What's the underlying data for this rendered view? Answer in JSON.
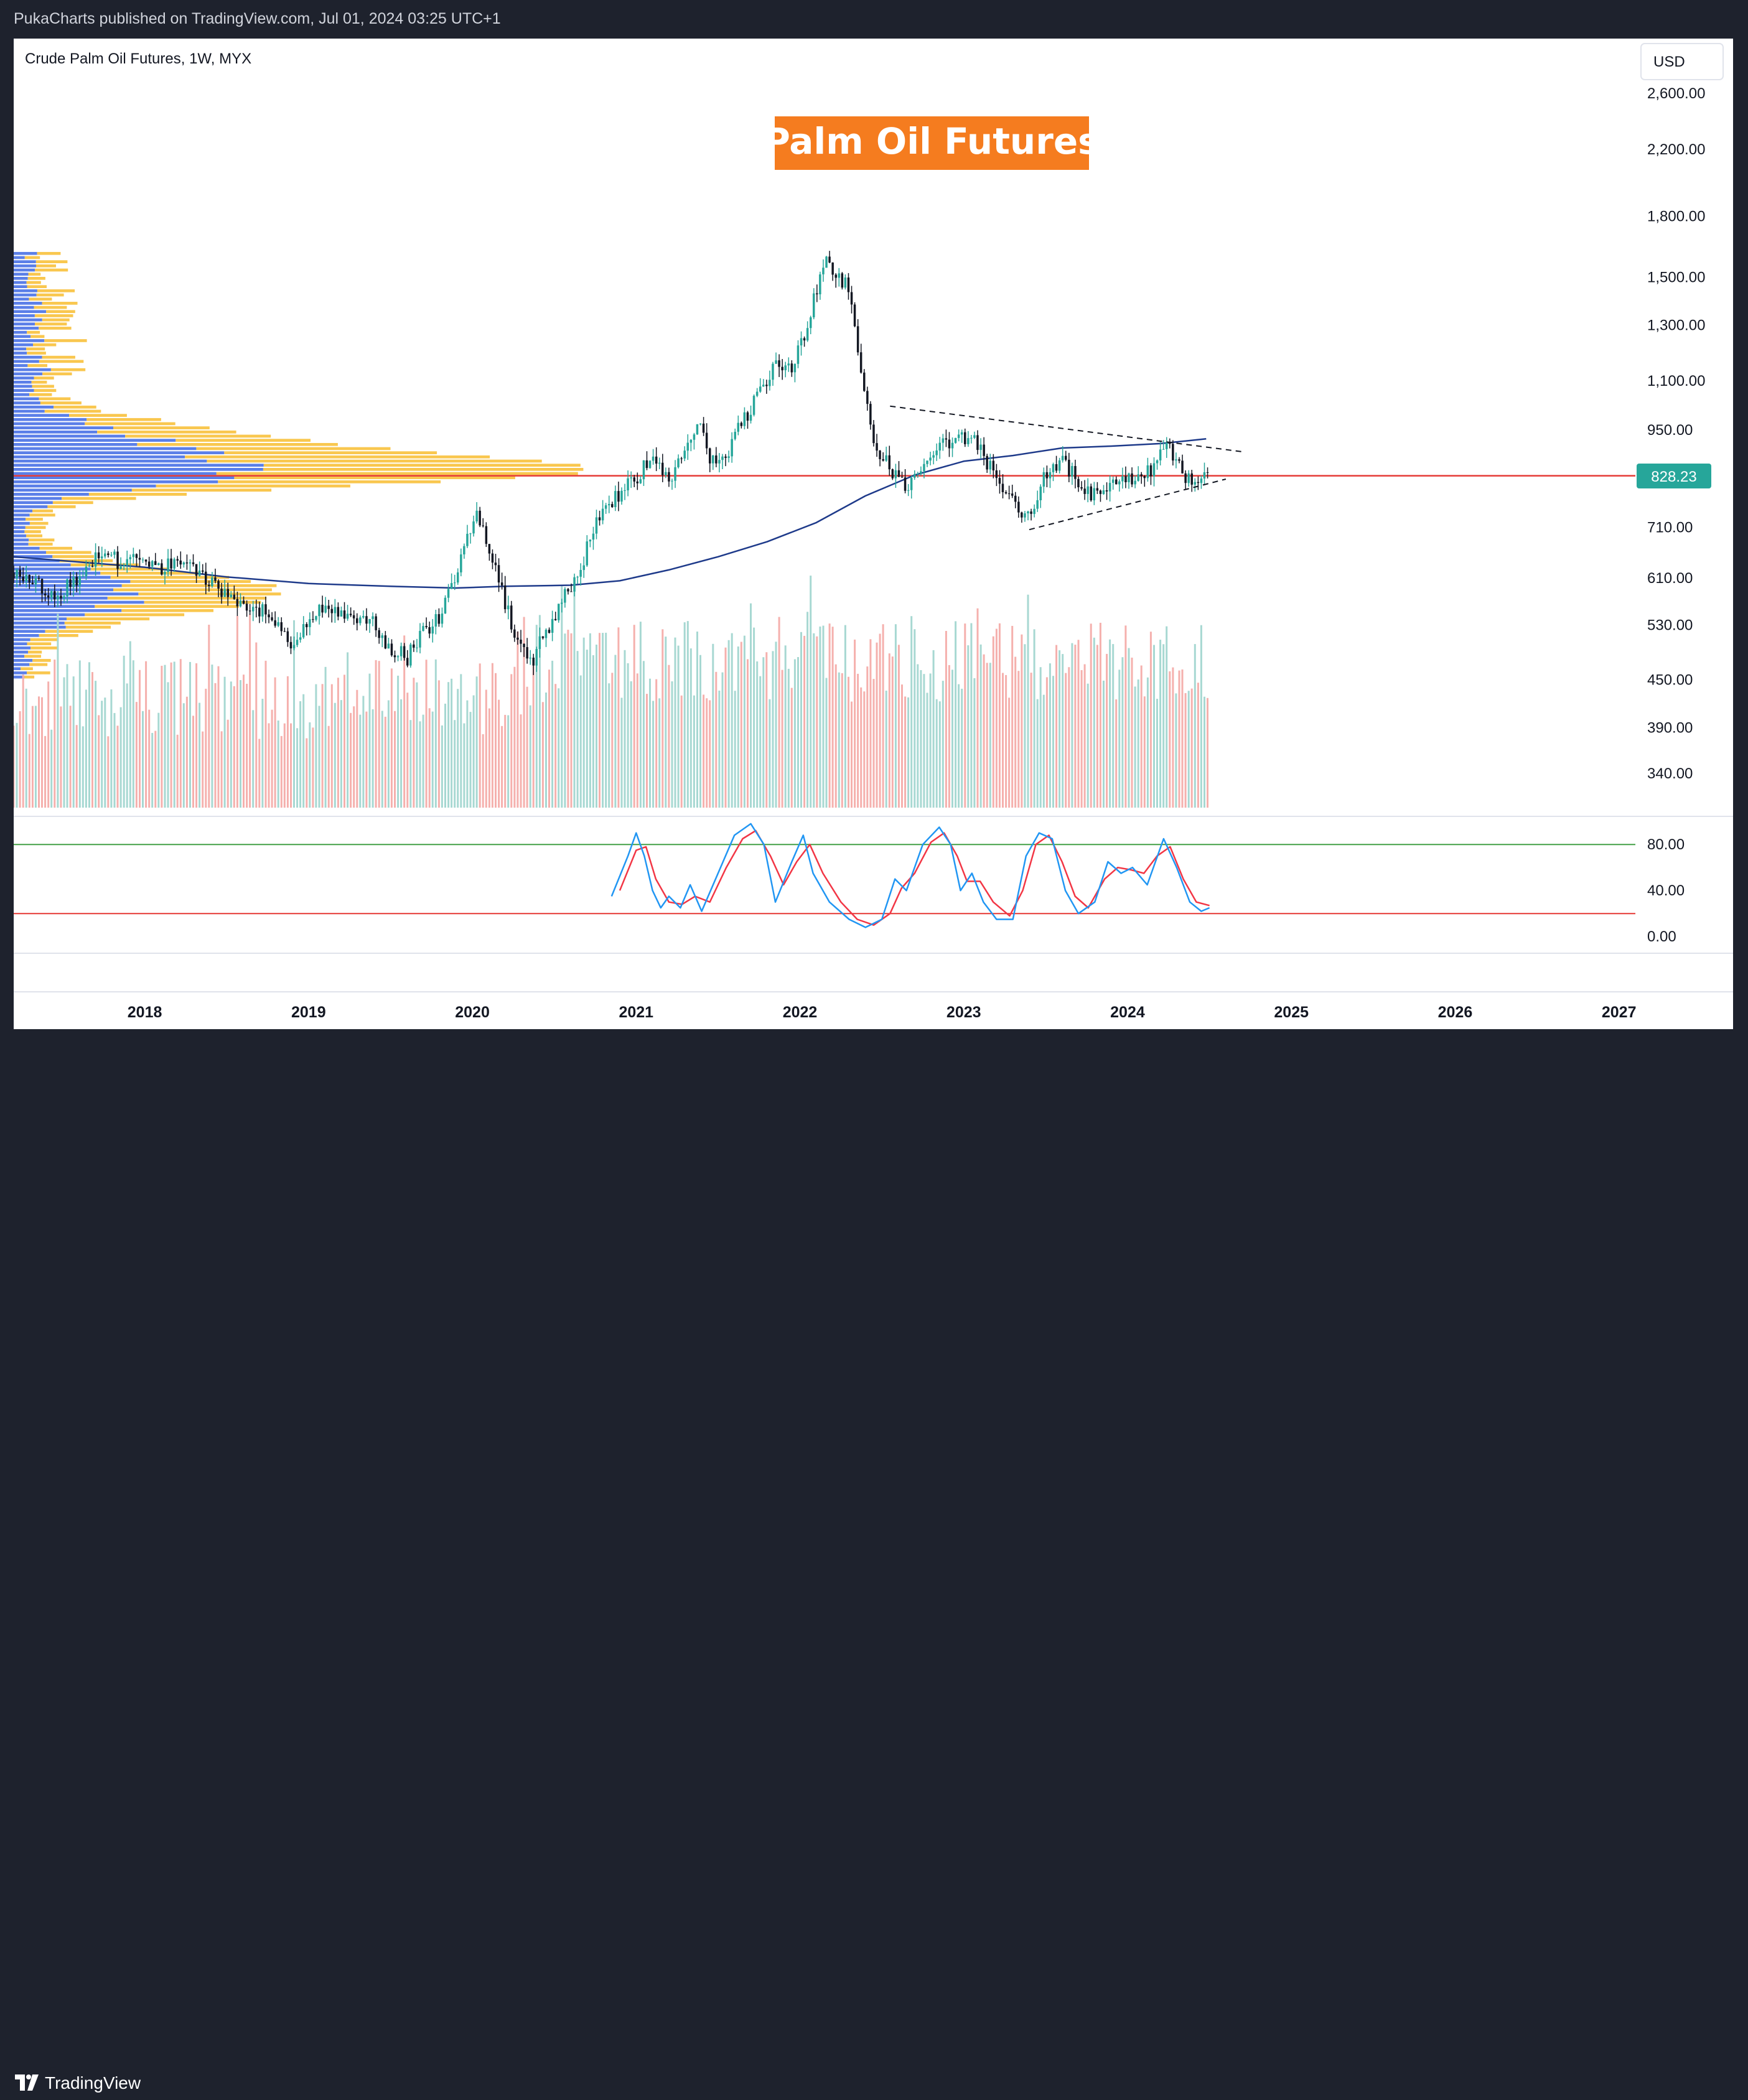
{
  "header": {
    "published": "PukaCharts published on TradingView.com, Jul 01, 2024 03:25 UTC+1"
  },
  "footer": {
    "brand": "TradingView",
    "logo_icon": "tradingview-logo-icon"
  },
  "colors": {
    "up": "#26a69a",
    "down": "#ef5350",
    "volume_up": "#a7d8d2",
    "volume_down": "#f5b0ad",
    "ma": "#1e3a8a",
    "profile_blue": "#5b7fe8",
    "profile_yellow": "#f9c74f",
    "banner_bg": "#f57c1f",
    "stoch_k": "#2196f3",
    "stoch_d": "#f23645",
    "level_line": "#e53935",
    "band_upper": "#43a047",
    "band_lower": "#e53935"
  },
  "chart_data": {
    "type": "candlestick",
    "symbol": "Crude Palm Oil Futures, 1W, MYX",
    "currency_button": "USD",
    "banner": "Palm Oil Futures",
    "last_price": "828.23",
    "price_axis": {
      "scale": "log",
      "ticks": [
        "2,600.00",
        "2,200.00",
        "1,800.00",
        "1,500.00",
        "1,300.00",
        "1,100.00",
        "950.00",
        "710.00",
        "610.00",
        "530.00",
        "450.00",
        "390.00",
        "340.00"
      ]
    },
    "time_axis": {
      "ticks": [
        "2018",
        "2019",
        "2020",
        "2021",
        "2022",
        "2023",
        "2024",
        "2025",
        "2026",
        "2027"
      ],
      "range": [
        2017.2,
        2027.1
      ]
    },
    "price_path": [
      [
        2017.25,
        620
      ],
      [
        2017.45,
        580
      ],
      [
        2017.6,
        610
      ],
      [
        2017.72,
        660
      ],
      [
        2017.85,
        640
      ],
      [
        2018.0,
        650
      ],
      [
        2018.1,
        630
      ],
      [
        2018.25,
        650
      ],
      [
        2018.35,
        610
      ],
      [
        2018.45,
        590
      ],
      [
        2018.55,
        560
      ],
      [
        2018.65,
        560
      ],
      [
        2018.8,
        540
      ],
      [
        2018.88,
        500
      ],
      [
        2018.95,
        520
      ],
      [
        2019.05,
        550
      ],
      [
        2019.12,
        570
      ],
      [
        2019.2,
        545
      ],
      [
        2019.3,
        530
      ],
      [
        2019.4,
        535
      ],
      [
        2019.48,
        500
      ],
      [
        2019.6,
        480
      ],
      [
        2019.7,
        520
      ],
      [
        2019.8,
        540
      ],
      [
        2019.9,
        620
      ],
      [
        2019.98,
        700
      ],
      [
        2020.03,
        740
      ],
      [
        2020.1,
        660
      ],
      [
        2020.18,
        590
      ],
      [
        2020.25,
        520
      ],
      [
        2020.35,
        470
      ],
      [
        2020.45,
        520
      ],
      [
        2020.55,
        570
      ],
      [
        2020.65,
        620
      ],
      [
        2020.75,
        720
      ],
      [
        2020.85,
        760
      ],
      [
        2020.92,
        800
      ],
      [
        2021.0,
        820
      ],
      [
        2021.1,
        880
      ],
      [
        2021.2,
        820
      ],
      [
        2021.3,
        900
      ],
      [
        2021.38,
        980
      ],
      [
        2021.46,
        860
      ],
      [
        2021.55,
        880
      ],
      [
        2021.65,
        980
      ],
      [
        2021.75,
        1050
      ],
      [
        2021.85,
        1150
      ],
      [
        2021.95,
        1150
      ],
      [
        2022.02,
        1250
      ],
      [
        2022.1,
        1450
      ],
      [
        2022.16,
        1600
      ],
      [
        2022.22,
        1500
      ],
      [
        2022.3,
        1450
      ],
      [
        2022.38,
        1100
      ],
      [
        2022.45,
        900
      ],
      [
        2022.55,
        850
      ],
      [
        2022.65,
        800
      ],
      [
        2022.75,
        850
      ],
      [
        2022.85,
        900
      ],
      [
        2022.95,
        920
      ],
      [
        2023.05,
        940
      ],
      [
        2023.12,
        880
      ],
      [
        2023.22,
        800
      ],
      [
        2023.3,
        760
      ],
      [
        2023.4,
        740
      ],
      [
        2023.5,
        830
      ],
      [
        2023.6,
        860
      ],
      [
        2023.7,
        820
      ],
      [
        2023.78,
        780
      ],
      [
        2023.85,
        800
      ],
      [
        2023.95,
        830
      ],
      [
        2024.05,
        820
      ],
      [
        2024.15,
        850
      ],
      [
        2024.22,
        920
      ],
      [
        2024.28,
        880
      ],
      [
        2024.35,
        820
      ],
      [
        2024.45,
        830
      ],
      [
        2024.5,
        828.23
      ]
    ],
    "moving_average_path": [
      [
        2017.2,
        650
      ],
      [
        2017.6,
        640
      ],
      [
        2018.0,
        630
      ],
      [
        2018.5,
        612
      ],
      [
        2019.0,
        600
      ],
      [
        2019.5,
        595
      ],
      [
        2019.9,
        592
      ],
      [
        2020.2,
        595
      ],
      [
        2020.6,
        597
      ],
      [
        2020.9,
        605
      ],
      [
        2021.2,
        625
      ],
      [
        2021.5,
        650
      ],
      [
        2021.8,
        680
      ],
      [
        2022.1,
        720
      ],
      [
        2022.4,
        780
      ],
      [
        2022.7,
        830
      ],
      [
        2023.0,
        865
      ],
      [
        2023.3,
        880
      ],
      [
        2023.6,
        900
      ],
      [
        2023.9,
        905
      ],
      [
        2024.2,
        912
      ],
      [
        2024.48,
        925
      ]
    ],
    "triangle_upper": [
      [
        2022.55,
        1020
      ],
      [
        2024.7,
        890
      ]
    ],
    "triangle_lower": [
      [
        2023.4,
        705
      ],
      [
        2024.6,
        820
      ]
    ],
    "horizontal_level": 828.23,
    "stochastic": {
      "range": [
        -8,
        112
      ],
      "ticks": [
        "80.00",
        "40.00",
        "0.00"
      ],
      "upper_band": 80,
      "lower_band": 20,
      "k": [
        [
          2020.85,
          35
        ],
        [
          2020.95,
          70
        ],
        [
          2021.0,
          90
        ],
        [
          2021.05,
          70
        ],
        [
          2021.1,
          40
        ],
        [
          2021.15,
          25
        ],
        [
          2021.2,
          35
        ],
        [
          2021.27,
          25
        ],
        [
          2021.33,
          45
        ],
        [
          2021.4,
          22
        ],
        [
          2021.5,
          55
        ],
        [
          2021.6,
          88
        ],
        [
          2021.7,
          98
        ],
        [
          2021.78,
          80
        ],
        [
          2021.85,
          30
        ],
        [
          2021.95,
          65
        ],
        [
          2022.02,
          88
        ],
        [
          2022.08,
          55
        ],
        [
          2022.18,
          30
        ],
        [
          2022.3,
          15
        ],
        [
          2022.4,
          8
        ],
        [
          2022.5,
          15
        ],
        [
          2022.58,
          50
        ],
        [
          2022.65,
          40
        ],
        [
          2022.75,
          80
        ],
        [
          2022.85,
          95
        ],
        [
          2022.92,
          80
        ],
        [
          2022.98,
          40
        ],
        [
          2023.05,
          55
        ],
        [
          2023.12,
          30
        ],
        [
          2023.2,
          15
        ],
        [
          2023.3,
          15
        ],
        [
          2023.38,
          70
        ],
        [
          2023.46,
          90
        ],
        [
          2023.54,
          85
        ],
        [
          2023.62,
          40
        ],
        [
          2023.7,
          20
        ],
        [
          2023.8,
          30
        ],
        [
          2023.88,
          65
        ],
        [
          2023.96,
          55
        ],
        [
          2024.03,
          60
        ],
        [
          2024.12,
          45
        ],
        [
          2024.22,
          85
        ],
        [
          2024.3,
          60
        ],
        [
          2024.38,
          30
        ],
        [
          2024.45,
          22
        ],
        [
          2024.5,
          25
        ]
      ],
      "d": [
        [
          2020.9,
          40
        ],
        [
          2021.0,
          75
        ],
        [
          2021.06,
          78
        ],
        [
          2021.12,
          50
        ],
        [
          2021.2,
          30
        ],
        [
          2021.28,
          28
        ],
        [
          2021.36,
          35
        ],
        [
          2021.45,
          30
        ],
        [
          2021.55,
          60
        ],
        [
          2021.65,
          85
        ],
        [
          2021.73,
          92
        ],
        [
          2021.82,
          70
        ],
        [
          2021.9,
          45
        ],
        [
          2021.98,
          65
        ],
        [
          2022.06,
          80
        ],
        [
          2022.14,
          55
        ],
        [
          2022.25,
          30
        ],
        [
          2022.35,
          15
        ],
        [
          2022.45,
          10
        ],
        [
          2022.55,
          20
        ],
        [
          2022.62,
          42
        ],
        [
          2022.7,
          55
        ],
        [
          2022.8,
          82
        ],
        [
          2022.88,
          90
        ],
        [
          2022.96,
          70
        ],
        [
          2023.02,
          48
        ],
        [
          2023.1,
          48
        ],
        [
          2023.18,
          30
        ],
        [
          2023.28,
          18
        ],
        [
          2023.36,
          40
        ],
        [
          2023.44,
          80
        ],
        [
          2023.52,
          88
        ],
        [
          2023.6,
          65
        ],
        [
          2023.68,
          35
        ],
        [
          2023.76,
          25
        ],
        [
          2023.86,
          50
        ],
        [
          2023.94,
          60
        ],
        [
          2024.02,
          58
        ],
        [
          2024.1,
          55
        ],
        [
          2024.18,
          70
        ],
        [
          2024.26,
          78
        ],
        [
          2024.34,
          50
        ],
        [
          2024.42,
          30
        ],
        [
          2024.5,
          27
        ]
      ]
    },
    "volume_range": [
      0,
      1
    ]
  }
}
